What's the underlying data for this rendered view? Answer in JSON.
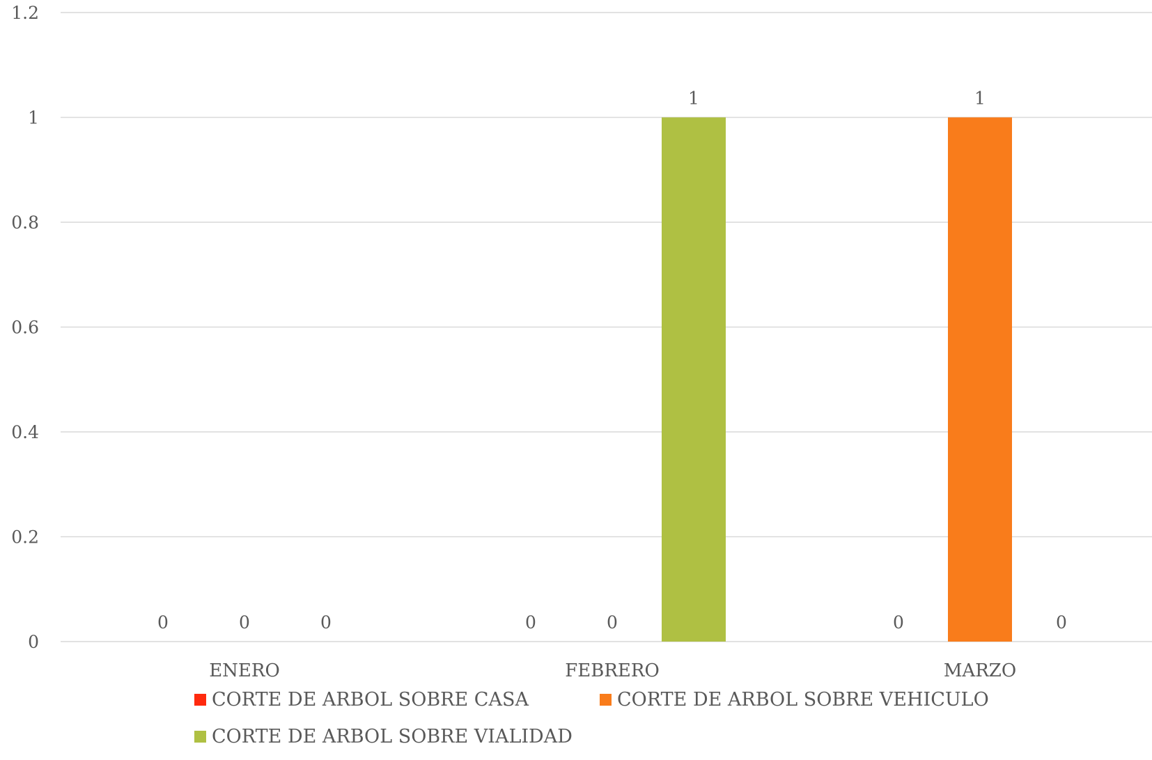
{
  "chart_data": {
    "type": "bar",
    "title": "",
    "xlabel": "",
    "ylabel": "",
    "categories": [
      "ENERO",
      "FEBRERO",
      "MARZO"
    ],
    "series": [
      {
        "name": "CORTE DE ARBOL SOBRE CASA",
        "color": "#ff2a0e",
        "values": [
          0,
          0,
          0
        ]
      },
      {
        "name": "CORTE DE ARBOL SOBRE VEHICULO",
        "color": "#f97c1b",
        "values": [
          0,
          0,
          1
        ]
      },
      {
        "name": "CORTE DE ARBOL SOBRE VIALIDAD",
        "color": "#afc043",
        "values": [
          0,
          1,
          0
        ]
      }
    ],
    "ylim": [
      0,
      1.2
    ],
    "yticks": [
      "0",
      "0.2",
      "0.4",
      "0.6",
      "0.8",
      "1",
      "1.2"
    ],
    "data_labels": true,
    "grid": true,
    "legend_position": "bottom"
  }
}
